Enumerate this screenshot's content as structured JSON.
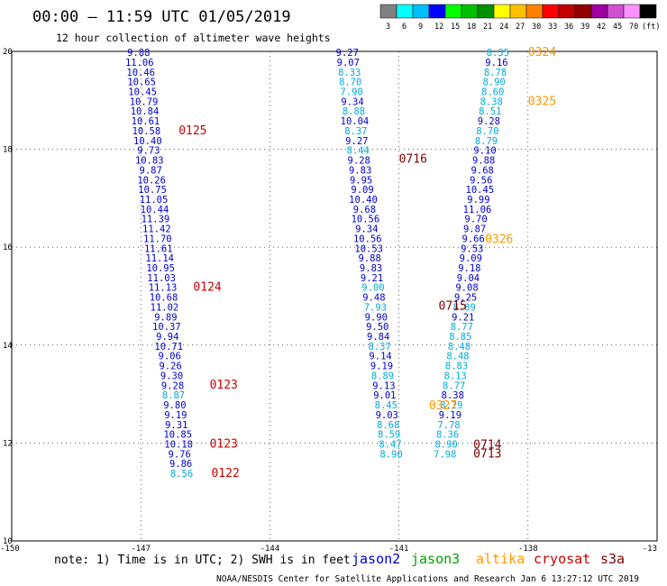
{
  "header": {
    "title": "00:00 – 11:59 UTC 01/05/2019",
    "subtitle": "12 hour collection of altimeter wave heights"
  },
  "colorbar": {
    "colors": [
      "#808080",
      "#00ffff",
      "#00bfff",
      "#0000ff",
      "#00ff00",
      "#00c000",
      "#009000",
      "#ffff00",
      "#ffc000",
      "#ff8000",
      "#ff0000",
      "#c00000",
      "#900000",
      "#a000a0",
      "#d050d0",
      "#ff90ff",
      "#000000"
    ],
    "labels": [
      "3",
      "6",
      "9",
      "12",
      "15",
      "18",
      "21",
      "24",
      "27",
      "30",
      "33",
      "36",
      "39",
      "42",
      "45",
      "70",
      "(ft)"
    ]
  },
  "axes": {
    "lon_ticks": [
      "-150",
      "-147",
      "-144",
      "-141",
      "-138",
      "-13"
    ],
    "lat_ticks": [
      "20",
      "18",
      "16",
      "14",
      "12",
      "10"
    ]
  },
  "satellite_colors": {
    "jason2": "#0000cc",
    "jason3": "#00a000",
    "altika": "#ff9900",
    "cryosat": "#cc0000",
    "s3a": "#800000",
    "light": "#00aadd"
  },
  "tracks": [
    {
      "name": "track-a",
      "points": [
        {
          "lon": -147.05,
          "lat": 19.98,
          "v": "9.88",
          "c": "#0000cc"
        },
        {
          "lon": -147.03,
          "lat": 19.78,
          "v": "11.06",
          "c": "#0000cc"
        },
        {
          "lon": -147.0,
          "lat": 19.58,
          "v": "10.46",
          "c": "#0000cc"
        },
        {
          "lon": -146.98,
          "lat": 19.38,
          "v": "10.65",
          "c": "#0000cc"
        },
        {
          "lon": -146.96,
          "lat": 19.18,
          "v": "10.45",
          "c": "#0000cc"
        },
        {
          "lon": -146.93,
          "lat": 18.98,
          "v": "10.79",
          "c": "#0000cc"
        },
        {
          "lon": -146.91,
          "lat": 18.78,
          "v": "10.84",
          "c": "#0000cc"
        },
        {
          "lon": -146.89,
          "lat": 18.58,
          "v": "10.61",
          "c": "#0000cc"
        },
        {
          "lon": -146.87,
          "lat": 18.38,
          "v": "10.58",
          "c": "#0000cc"
        },
        {
          "lon": -146.84,
          "lat": 18.18,
          "v": "10.40",
          "c": "#0000cc"
        },
        {
          "lon": -146.82,
          "lat": 17.98,
          "v": "9.73",
          "c": "#0000cc"
        },
        {
          "lon": -146.8,
          "lat": 17.78,
          "v": "10.83",
          "c": "#0000cc"
        },
        {
          "lon": -146.77,
          "lat": 17.58,
          "v": "9.87",
          "c": "#0000cc"
        },
        {
          "lon": -146.75,
          "lat": 17.38,
          "v": "10.26",
          "c": "#0000cc"
        },
        {
          "lon": -146.73,
          "lat": 17.18,
          "v": "10.75",
          "c": "#0000cc"
        },
        {
          "lon": -146.7,
          "lat": 16.98,
          "v": "11.05",
          "c": "#0000cc"
        },
        {
          "lon": -146.68,
          "lat": 16.78,
          "v": "10.44",
          "c": "#0000cc"
        },
        {
          "lon": -146.66,
          "lat": 16.58,
          "v": "11.39",
          "c": "#0000cc"
        },
        {
          "lon": -146.63,
          "lat": 16.38,
          "v": "11.42",
          "c": "#0000cc"
        },
        {
          "lon": -146.61,
          "lat": 16.18,
          "v": "11.70",
          "c": "#0000cc"
        },
        {
          "lon": -146.59,
          "lat": 15.98,
          "v": "11.61",
          "c": "#0000cc"
        },
        {
          "lon": -146.56,
          "lat": 15.78,
          "v": "11.14",
          "c": "#0000cc"
        },
        {
          "lon": -146.54,
          "lat": 15.58,
          "v": "10.95",
          "c": "#0000cc"
        },
        {
          "lon": -146.52,
          "lat": 15.38,
          "v": "11.03",
          "c": "#0000cc"
        },
        {
          "lon": -146.49,
          "lat": 15.18,
          "v": "11.13",
          "c": "#0000cc"
        },
        {
          "lon": -146.47,
          "lat": 14.98,
          "v": "10.68",
          "c": "#0000cc"
        },
        {
          "lon": -146.45,
          "lat": 14.78,
          "v": "11.02",
          "c": "#0000cc"
        },
        {
          "lon": -146.42,
          "lat": 14.58,
          "v": "9.89",
          "c": "#0000cc"
        },
        {
          "lon": -146.4,
          "lat": 14.38,
          "v": "10.37",
          "c": "#0000cc"
        },
        {
          "lon": -146.38,
          "lat": 14.18,
          "v": "9.94",
          "c": "#0000cc"
        },
        {
          "lon": -146.35,
          "lat": 13.98,
          "v": "10.71",
          "c": "#0000cc"
        },
        {
          "lon": -146.33,
          "lat": 13.78,
          "v": "9.06",
          "c": "#0000cc"
        },
        {
          "lon": -146.31,
          "lat": 13.58,
          "v": "9.26",
          "c": "#0000cc"
        },
        {
          "lon": -146.28,
          "lat": 13.38,
          "v": "9.30",
          "c": "#0000cc"
        },
        {
          "lon": -146.26,
          "lat": 13.18,
          "v": "9.28",
          "c": "#0000cc"
        },
        {
          "lon": -146.24,
          "lat": 12.98,
          "v": "8.87",
          "c": "#00aadd"
        },
        {
          "lon": -146.21,
          "lat": 12.78,
          "v": "9.80",
          "c": "#0000cc"
        },
        {
          "lon": -146.19,
          "lat": 12.58,
          "v": "9.19",
          "c": "#0000cc"
        },
        {
          "lon": -146.17,
          "lat": 12.38,
          "v": "9.31",
          "c": "#0000cc"
        },
        {
          "lon": -146.14,
          "lat": 12.18,
          "v": "10.85",
          "c": "#0000cc"
        },
        {
          "lon": -146.12,
          "lat": 11.98,
          "v": "10.18",
          "c": "#0000cc"
        },
        {
          "lon": -146.1,
          "lat": 11.78,
          "v": "9.76",
          "c": "#0000cc"
        },
        {
          "lon": -146.07,
          "lat": 11.58,
          "v": "9.86",
          "c": "#0000cc"
        },
        {
          "lon": -146.05,
          "lat": 11.38,
          "v": "8.56",
          "c": "#00aadd"
        }
      ]
    },
    {
      "name": "track-b",
      "points": [
        {
          "lon": -142.2,
          "lat": 19.98,
          "v": "9.27",
          "c": "#0000cc"
        },
        {
          "lon": -142.18,
          "lat": 19.78,
          "v": "9.07",
          "c": "#0000cc"
        },
        {
          "lon": -142.15,
          "lat": 19.58,
          "v": "8.33",
          "c": "#00aadd"
        },
        {
          "lon": -142.13,
          "lat": 19.38,
          "v": "8.70",
          "c": "#00aadd"
        },
        {
          "lon": -142.1,
          "lat": 19.18,
          "v": "7.90",
          "c": "#00aadd"
        },
        {
          "lon": -142.08,
          "lat": 18.98,
          "v": "9.34",
          "c": "#0000cc"
        },
        {
          "lon": -142.05,
          "lat": 18.78,
          "v": "8.88",
          "c": "#00aadd"
        },
        {
          "lon": -142.03,
          "lat": 18.58,
          "v": "10.04",
          "c": "#0000cc"
        },
        {
          "lon": -142.0,
          "lat": 18.38,
          "v": "8.37",
          "c": "#00aadd"
        },
        {
          "lon": -141.98,
          "lat": 18.18,
          "v": "9.27",
          "c": "#0000cc"
        },
        {
          "lon": -141.95,
          "lat": 17.98,
          "v": "8.44",
          "c": "#00aadd"
        },
        {
          "lon": -141.93,
          "lat": 17.78,
          "v": "9.28",
          "c": "#0000cc"
        },
        {
          "lon": -141.9,
          "lat": 17.58,
          "v": "9.83",
          "c": "#0000cc"
        },
        {
          "lon": -141.88,
          "lat": 17.38,
          "v": "9.95",
          "c": "#0000cc"
        },
        {
          "lon": -141.85,
          "lat": 17.18,
          "v": "9.09",
          "c": "#0000cc"
        },
        {
          "lon": -141.83,
          "lat": 16.98,
          "v": "10.40",
          "c": "#0000cc"
        },
        {
          "lon": -141.8,
          "lat": 16.78,
          "v": "9.68",
          "c": "#0000cc"
        },
        {
          "lon": -141.78,
          "lat": 16.58,
          "v": "10.56",
          "c": "#0000cc"
        },
        {
          "lon": -141.75,
          "lat": 16.38,
          "v": "9.34",
          "c": "#0000cc"
        },
        {
          "lon": -141.73,
          "lat": 16.18,
          "v": "10.56",
          "c": "#0000cc"
        },
        {
          "lon": -141.7,
          "lat": 15.98,
          "v": "10.53",
          "c": "#0000cc"
        },
        {
          "lon": -141.68,
          "lat": 15.78,
          "v": "9.88",
          "c": "#0000cc"
        },
        {
          "lon": -141.65,
          "lat": 15.58,
          "v": "9.83",
          "c": "#0000cc"
        },
        {
          "lon": -141.63,
          "lat": 15.38,
          "v": "9.21",
          "c": "#0000cc"
        },
        {
          "lon": -141.6,
          "lat": 15.18,
          "v": "9.00",
          "c": "#00aadd"
        },
        {
          "lon": -141.58,
          "lat": 14.98,
          "v": "9.48",
          "c": "#0000cc"
        },
        {
          "lon": -141.55,
          "lat": 14.78,
          "v": "7.93",
          "c": "#00aadd"
        },
        {
          "lon": -141.53,
          "lat": 14.58,
          "v": "9.90",
          "c": "#0000cc"
        },
        {
          "lon": -141.5,
          "lat": 14.38,
          "v": "9.50",
          "c": "#0000cc"
        },
        {
          "lon": -141.48,
          "lat": 14.18,
          "v": "9.84",
          "c": "#0000cc"
        },
        {
          "lon": -141.45,
          "lat": 13.98,
          "v": "8.37",
          "c": "#00aadd"
        },
        {
          "lon": -141.43,
          "lat": 13.78,
          "v": "9.14",
          "c": "#0000cc"
        },
        {
          "lon": -141.4,
          "lat": 13.58,
          "v": "9.19",
          "c": "#0000cc"
        },
        {
          "lon": -141.38,
          "lat": 13.38,
          "v": "8.89",
          "c": "#00aadd"
        },
        {
          "lon": -141.35,
          "lat": 13.18,
          "v": "9.13",
          "c": "#0000cc"
        },
        {
          "lon": -141.33,
          "lat": 12.98,
          "v": "9.01",
          "c": "#0000cc"
        },
        {
          "lon": -141.3,
          "lat": 12.78,
          "v": "8.45",
          "c": "#00aadd"
        },
        {
          "lon": -141.28,
          "lat": 12.58,
          "v": "9.03",
          "c": "#0000cc"
        },
        {
          "lon": -141.25,
          "lat": 12.38,
          "v": "8.68",
          "c": "#00aadd"
        },
        {
          "lon": -141.23,
          "lat": 12.18,
          "v": "8.59",
          "c": "#00aadd"
        },
        {
          "lon": -141.2,
          "lat": 11.98,
          "v": "8.47",
          "c": "#00aadd"
        },
        {
          "lon": -141.18,
          "lat": 11.78,
          "v": "8.90",
          "c": "#00aadd"
        }
      ]
    },
    {
      "name": "track-c",
      "points": [
        {
          "lon": -138.7,
          "lat": 19.98,
          "v": "8.35",
          "c": "#00aadd"
        },
        {
          "lon": -138.73,
          "lat": 19.78,
          "v": "9.16",
          "c": "#0000cc"
        },
        {
          "lon": -138.76,
          "lat": 19.58,
          "v": "8.78",
          "c": "#00aadd"
        },
        {
          "lon": -138.79,
          "lat": 19.38,
          "v": "8.90",
          "c": "#00aadd"
        },
        {
          "lon": -138.82,
          "lat": 19.18,
          "v": "8.60",
          "c": "#00aadd"
        },
        {
          "lon": -138.85,
          "lat": 18.98,
          "v": "8.38",
          "c": "#00aadd"
        },
        {
          "lon": -138.88,
          "lat": 18.78,
          "v": "8.51",
          "c": "#00aadd"
        },
        {
          "lon": -138.91,
          "lat": 18.58,
          "v": "9.28",
          "c": "#0000cc"
        },
        {
          "lon": -138.94,
          "lat": 18.38,
          "v": "8.70",
          "c": "#00aadd"
        },
        {
          "lon": -138.97,
          "lat": 18.18,
          "v": "8.79",
          "c": "#00aadd"
        },
        {
          "lon": -139.0,
          "lat": 17.98,
          "v": "9.10",
          "c": "#0000cc"
        },
        {
          "lon": -139.03,
          "lat": 17.78,
          "v": "9.88",
          "c": "#0000cc"
        },
        {
          "lon": -139.06,
          "lat": 17.58,
          "v": "9.68",
          "c": "#0000cc"
        },
        {
          "lon": -139.09,
          "lat": 17.38,
          "v": "9.56",
          "c": "#0000cc"
        },
        {
          "lon": -139.12,
          "lat": 17.18,
          "v": "10.45",
          "c": "#0000cc"
        },
        {
          "lon": -139.15,
          "lat": 16.98,
          "v": "9.99",
          "c": "#0000cc"
        },
        {
          "lon": -139.18,
          "lat": 16.78,
          "v": "11.06",
          "c": "#0000cc"
        },
        {
          "lon": -139.21,
          "lat": 16.58,
          "v": "9.70",
          "c": "#0000cc"
        },
        {
          "lon": -139.24,
          "lat": 16.38,
          "v": "9.87",
          "c": "#0000cc"
        },
        {
          "lon": -139.27,
          "lat": 16.18,
          "v": "9.66",
          "c": "#0000cc"
        },
        {
          "lon": -139.3,
          "lat": 15.98,
          "v": "9.53",
          "c": "#0000cc"
        },
        {
          "lon": -139.33,
          "lat": 15.78,
          "v": "9.09",
          "c": "#0000cc"
        },
        {
          "lon": -139.36,
          "lat": 15.58,
          "v": "9.18",
          "c": "#0000cc"
        },
        {
          "lon": -139.39,
          "lat": 15.38,
          "v": "9.04",
          "c": "#0000cc"
        },
        {
          "lon": -139.42,
          "lat": 15.18,
          "v": "9.08",
          "c": "#0000cc"
        },
        {
          "lon": -139.45,
          "lat": 14.98,
          "v": "9.25",
          "c": "#0000cc"
        },
        {
          "lon": -139.48,
          "lat": 14.78,
          "v": "8.89",
          "c": "#00aadd"
        },
        {
          "lon": -139.51,
          "lat": 14.58,
          "v": "9.21",
          "c": "#0000cc"
        },
        {
          "lon": -139.54,
          "lat": 14.38,
          "v": "8.77",
          "c": "#00aadd"
        },
        {
          "lon": -139.57,
          "lat": 14.18,
          "v": "8.85",
          "c": "#00aadd"
        },
        {
          "lon": -139.6,
          "lat": 13.98,
          "v": "8.48",
          "c": "#00aadd"
        },
        {
          "lon": -139.63,
          "lat": 13.78,
          "v": "8.48",
          "c": "#00aadd"
        },
        {
          "lon": -139.66,
          "lat": 13.58,
          "v": "8.83",
          "c": "#00aadd"
        },
        {
          "lon": -139.69,
          "lat": 13.38,
          "v": "8.13",
          "c": "#00aadd"
        },
        {
          "lon": -139.72,
          "lat": 13.18,
          "v": "8.77",
          "c": "#00aadd"
        },
        {
          "lon": -139.75,
          "lat": 12.98,
          "v": "8.38",
          "c": "#0000cc"
        },
        {
          "lon": -139.78,
          "lat": 12.78,
          "v": "8.29",
          "c": "#00aadd"
        },
        {
          "lon": -139.81,
          "lat": 12.58,
          "v": "9.19",
          "c": "#0000cc"
        },
        {
          "lon": -139.84,
          "lat": 12.38,
          "v": "7.78",
          "c": "#00aadd"
        },
        {
          "lon": -139.87,
          "lat": 12.18,
          "v": "8.36",
          "c": "#00aadd"
        },
        {
          "lon": -139.9,
          "lat": 11.98,
          "v": "8.90",
          "c": "#00aadd"
        },
        {
          "lon": -139.93,
          "lat": 11.78,
          "v": "7.98",
          "c": "#00aadd"
        }
      ]
    }
  ],
  "pass_labels": [
    {
      "text": "0125",
      "lon": -146.12,
      "lat": 18.4,
      "c": "#cc0000"
    },
    {
      "text": "0124",
      "lon": -145.78,
      "lat": 15.2,
      "c": "#cc0000"
    },
    {
      "text": "0123",
      "lon": -145.4,
      "lat": 13.2,
      "c": "#cc0000"
    },
    {
      "text": "0123",
      "lon": -145.4,
      "lat": 12.0,
      "c": "#cc0000"
    },
    {
      "text": "0122",
      "lon": -145.36,
      "lat": 11.4,
      "c": "#cc0000"
    },
    {
      "text": "0716",
      "lon": -141.0,
      "lat": 17.82,
      "c": "#800000"
    },
    {
      "text": "0715",
      "lon": -140.08,
      "lat": 14.82,
      "c": "#800000"
    },
    {
      "text": "0714",
      "lon": -139.27,
      "lat": 11.98,
      "c": "#800000"
    },
    {
      "text": "0713",
      "lon": -139.27,
      "lat": 11.8,
      "c": "#800000"
    },
    {
      "text": "0324",
      "lon": -138.0,
      "lat": 20.0,
      "c": "#ff9900"
    },
    {
      "text": "0325",
      "lon": -138.0,
      "lat": 19.0,
      "c": "#ff9900"
    },
    {
      "text": "0326",
      "lon": -139.0,
      "lat": 16.18,
      "c": "#ff9900"
    },
    {
      "text": "0327",
      "lon": -140.3,
      "lat": 12.78,
      "c": "#ff9900"
    }
  ],
  "note": "note:  1) Time is in UTC; 2) SWH is in feet",
  "legend": [
    {
      "label": "jason2",
      "c": "#0000cc"
    },
    {
      "label": "jason3",
      "c": "#00a000"
    },
    {
      "label": "altika",
      "c": "#ff9900"
    },
    {
      "label": "cryosat",
      "c": "#cc0000"
    },
    {
      "label": "s3a",
      "c": "#800000"
    }
  ],
  "footer": "NOAA/NESDIS Center for Satellite Applications and Research     Jan  6 13:27:12 UTC 2019"
}
